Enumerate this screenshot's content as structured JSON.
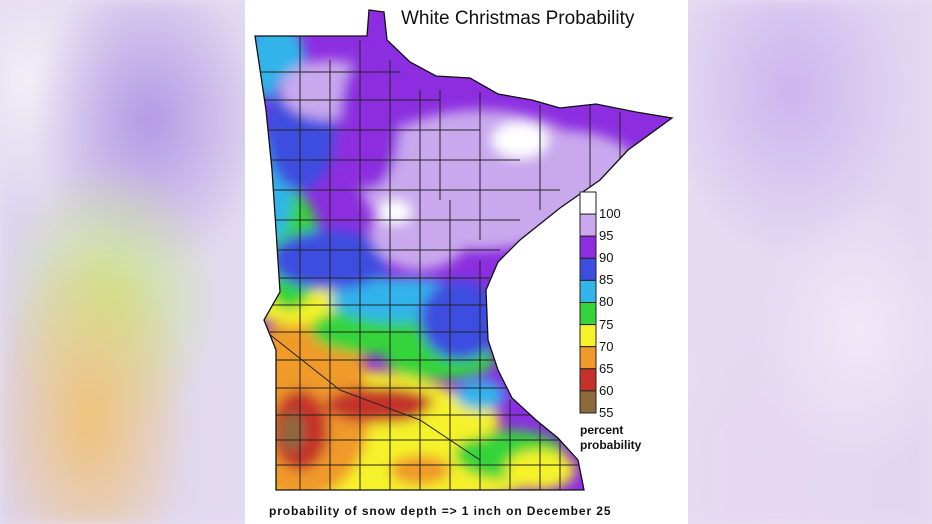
{
  "map": {
    "title": "White Christmas Probability",
    "footer": "probability of snow depth => 1 inch on December 25",
    "legend": {
      "caption_line1": "percent",
      "caption_line2": "probability",
      "bins": [
        {
          "label": "100",
          "color": "#ffffff"
        },
        {
          "label": "95",
          "color": "#c9a8ee"
        },
        {
          "label": "90",
          "color": "#8c2ee0"
        },
        {
          "label": "85",
          "color": "#3c4ee0"
        },
        {
          "label": "80",
          "color": "#33b4ea"
        },
        {
          "label": "75",
          "color": "#35d43a"
        },
        {
          "label": "70",
          "color": "#f5f22a"
        },
        {
          "label": "65",
          "color": "#f09a2c"
        },
        {
          "label": "60",
          "color": "#c43229"
        },
        {
          "label": "55",
          "color": "#8c6a3c"
        }
      ]
    }
  }
}
